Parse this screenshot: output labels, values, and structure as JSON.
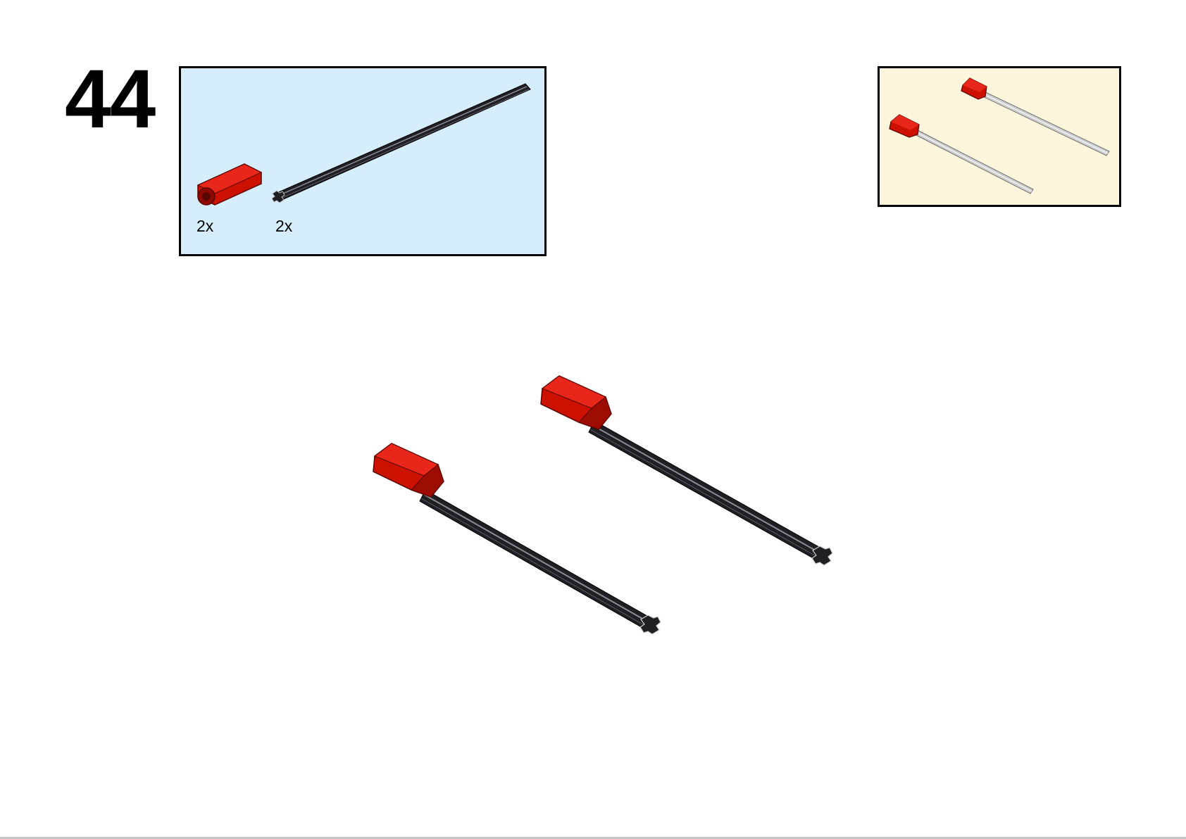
{
  "step": {
    "number": "44"
  },
  "parts_list": {
    "background_color": "#d6eefb",
    "items": [
      {
        "part": "red-axle-connector",
        "quantity": "2x",
        "color": "#cc1100"
      },
      {
        "part": "black-axle",
        "quantity": "2x",
        "color": "#1f1f24"
      }
    ]
  },
  "sub_assembly_preview": {
    "background_color": "#fdf6dc"
  },
  "colors": {
    "connector_red": "#cc1100",
    "connector_red_dark": "#8e0a00",
    "axle_black": "#1f1f24",
    "axle_highlight": "#8a8a96",
    "preview_axle_gray": "#d0d0d0"
  }
}
